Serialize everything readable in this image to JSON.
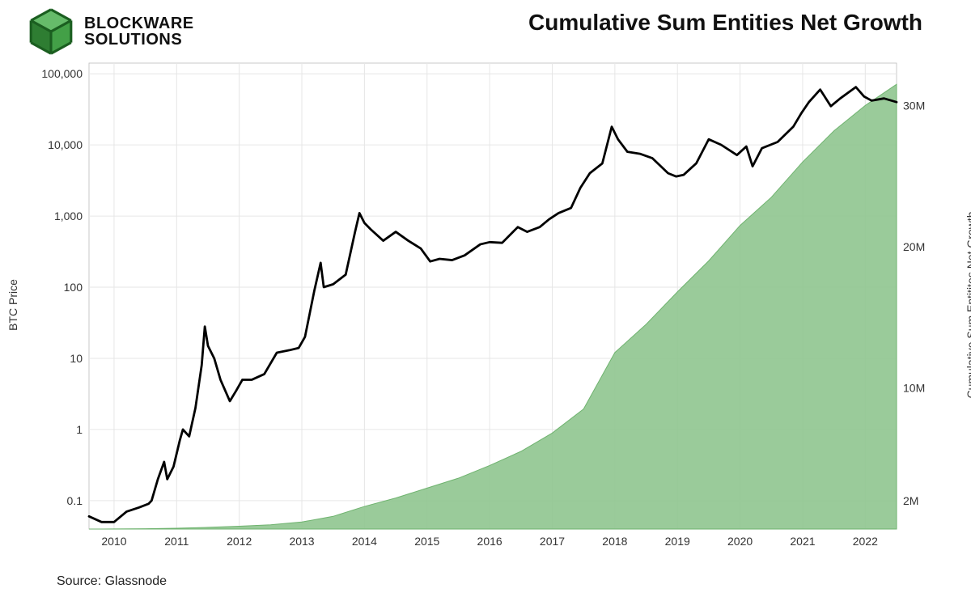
{
  "logo": {
    "line1": "BLOCKWARE",
    "line2": "SOLUTIONS",
    "cube_colors": {
      "top": "#66bb6a",
      "left": "#2e7d32",
      "right": "#43a047",
      "edge": "#1b5e20"
    }
  },
  "title": "Cumulative Sum Entities Net Growth",
  "source": "Source: Glassnode",
  "chart": {
    "type": "dual-axis-line-area",
    "background_color": "#ffffff",
    "grid_color": "#e6e6e6",
    "axis_color": "#bdbdbd",
    "tick_font_size": 14,
    "tick_color": "#333333",
    "label_font_size": 14,
    "line_color": "#000000",
    "line_width": 2.8,
    "area_fill": "#8fc58f",
    "area_stroke": "#6fb36f",
    "x": {
      "min": 2009.6,
      "max": 2022.5,
      "ticks": [
        2010,
        2011,
        2012,
        2013,
        2014,
        2015,
        2016,
        2017,
        2018,
        2019,
        2020,
        2021,
        2022
      ],
      "tick_labels": [
        "2010",
        "2011",
        "2012",
        "2013",
        "2014",
        "2015",
        "2016",
        "2017",
        "2018",
        "2019",
        "2020",
        "2021",
        "2022"
      ]
    },
    "y_left": {
      "label": "BTC Price",
      "scale": "log",
      "min_exp": -1.4,
      "max_exp": 5.15,
      "ticks_exp": [
        -1,
        0,
        1,
        2,
        3,
        4,
        5
      ],
      "tick_labels": [
        "0.1",
        "1",
        "10",
        "100",
        "1,000",
        "10,000",
        "100,000"
      ]
    },
    "y_right": {
      "label": "Cumulative Sum Entitites Net Growth",
      "scale": "linear",
      "min": 0,
      "max": 33000000,
      "ticks": [
        2000000,
        10000000,
        20000000,
        30000000
      ],
      "tick_labels": [
        "2M",
        "10M",
        "20M",
        "30M"
      ]
    },
    "price_series": [
      [
        2009.6,
        0.06
      ],
      [
        2009.8,
        0.05
      ],
      [
        2010.0,
        0.05
      ],
      [
        2010.2,
        0.07
      ],
      [
        2010.4,
        0.08
      ],
      [
        2010.55,
        0.09
      ],
      [
        2010.6,
        0.1
      ],
      [
        2010.7,
        0.2
      ],
      [
        2010.8,
        0.35
      ],
      [
        2010.85,
        0.2
      ],
      [
        2010.95,
        0.3
      ],
      [
        2011.05,
        0.7
      ],
      [
        2011.1,
        1.0
      ],
      [
        2011.2,
        0.8
      ],
      [
        2011.3,
        2.0
      ],
      [
        2011.4,
        8.0
      ],
      [
        2011.45,
        28.0
      ],
      [
        2011.5,
        15.0
      ],
      [
        2011.6,
        10.0
      ],
      [
        2011.7,
        5.0
      ],
      [
        2011.85,
        2.5
      ],
      [
        2011.95,
        3.5
      ],
      [
        2012.05,
        5.0
      ],
      [
        2012.2,
        5.0
      ],
      [
        2012.4,
        6.0
      ],
      [
        2012.6,
        12.0
      ],
      [
        2012.8,
        13.0
      ],
      [
        2012.95,
        14.0
      ],
      [
        2013.05,
        20.0
      ],
      [
        2013.2,
        90.0
      ],
      [
        2013.3,
        220.0
      ],
      [
        2013.35,
        100.0
      ],
      [
        2013.5,
        110.0
      ],
      [
        2013.7,
        150.0
      ],
      [
        2013.85,
        600.0
      ],
      [
        2013.92,
        1100.0
      ],
      [
        2014.0,
        800.0
      ],
      [
        2014.1,
        650.0
      ],
      [
        2014.3,
        450.0
      ],
      [
        2014.5,
        600.0
      ],
      [
        2014.7,
        450.0
      ],
      [
        2014.9,
        350.0
      ],
      [
        2015.05,
        230.0
      ],
      [
        2015.2,
        250.0
      ],
      [
        2015.4,
        240.0
      ],
      [
        2015.6,
        280.0
      ],
      [
        2015.85,
        400.0
      ],
      [
        2016.0,
        430.0
      ],
      [
        2016.2,
        420.0
      ],
      [
        2016.45,
        700.0
      ],
      [
        2016.6,
        600.0
      ],
      [
        2016.8,
        700.0
      ],
      [
        2016.95,
        900.0
      ],
      [
        2017.1,
        1100.0
      ],
      [
        2017.3,
        1300.0
      ],
      [
        2017.45,
        2500.0
      ],
      [
        2017.6,
        4000.0
      ],
      [
        2017.8,
        5500.0
      ],
      [
        2017.95,
        18000.0
      ],
      [
        2018.05,
        12000.0
      ],
      [
        2018.2,
        8000.0
      ],
      [
        2018.4,
        7500.0
      ],
      [
        2018.6,
        6500.0
      ],
      [
        2018.85,
        4000.0
      ],
      [
        2018.98,
        3600.0
      ],
      [
        2019.1,
        3800.0
      ],
      [
        2019.3,
        5500.0
      ],
      [
        2019.5,
        12000.0
      ],
      [
        2019.7,
        10000.0
      ],
      [
        2019.95,
        7200.0
      ],
      [
        2020.1,
        9500.0
      ],
      [
        2020.2,
        5000.0
      ],
      [
        2020.35,
        9000.0
      ],
      [
        2020.6,
        11000.0
      ],
      [
        2020.85,
        18000.0
      ],
      [
        2020.98,
        28000.0
      ],
      [
        2021.1,
        40000.0
      ],
      [
        2021.28,
        60000.0
      ],
      [
        2021.45,
        35000.0
      ],
      [
        2021.6,
        45000.0
      ],
      [
        2021.85,
        65000.0
      ],
      [
        2021.98,
        48000.0
      ],
      [
        2022.1,
        42000.0
      ],
      [
        2022.3,
        45000.0
      ],
      [
        2022.5,
        40000.0
      ]
    ],
    "entities_series": [
      [
        2009.6,
        0
      ],
      [
        2010.0,
        5000
      ],
      [
        2010.5,
        20000
      ],
      [
        2011.0,
        60000
      ],
      [
        2011.5,
        120000
      ],
      [
        2012.0,
        200000
      ],
      [
        2012.5,
        300000
      ],
      [
        2013.0,
        500000
      ],
      [
        2013.5,
        900000
      ],
      [
        2014.0,
        1600000
      ],
      [
        2014.5,
        2200000
      ],
      [
        2015.0,
        2900000
      ],
      [
        2015.5,
        3600000
      ],
      [
        2016.0,
        4500000
      ],
      [
        2016.5,
        5500000
      ],
      [
        2017.0,
        6800000
      ],
      [
        2017.5,
        8500000
      ],
      [
        2018.0,
        12500000
      ],
      [
        2018.5,
        14500000
      ],
      [
        2019.0,
        16800000
      ],
      [
        2019.5,
        19000000
      ],
      [
        2020.0,
        21500000
      ],
      [
        2020.5,
        23500000
      ],
      [
        2021.0,
        26000000
      ],
      [
        2021.5,
        28200000
      ],
      [
        2022.0,
        30000000
      ],
      [
        2022.5,
        31500000
      ]
    ]
  }
}
